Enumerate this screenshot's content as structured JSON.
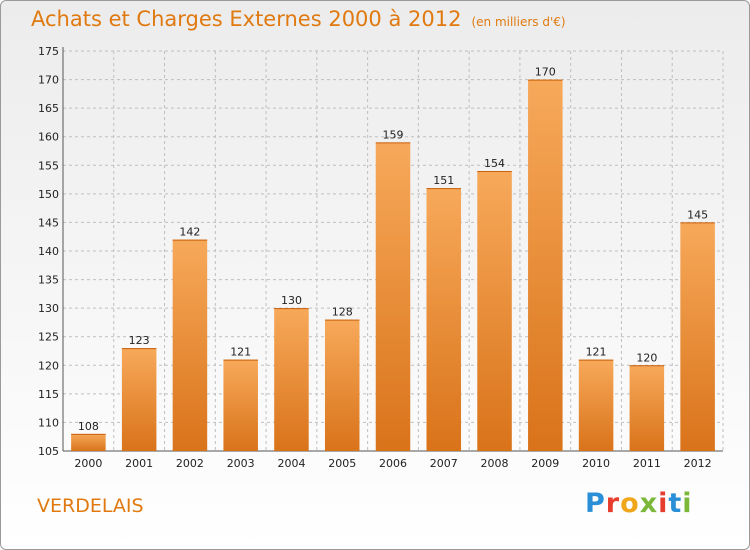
{
  "header": {
    "title": "Achats et Charges Externes 2000 à 2012",
    "subtitle": "(en milliers d'€)"
  },
  "footer": {
    "commune": "VERDELAIS",
    "logo_letters": [
      "P",
      "r",
      "o",
      "x",
      "i",
      "t",
      "i"
    ],
    "logo_colors": [
      "#2a8fd6",
      "#e63d2c",
      "#f0a61a",
      "#7bb83a",
      "#e63d2c",
      "#2a8fd6",
      "#7bb83a"
    ]
  },
  "chart_data": {
    "type": "bar",
    "categories": [
      "2000",
      "2001",
      "2002",
      "2003",
      "2004",
      "2005",
      "2006",
      "2007",
      "2008",
      "2009",
      "2010",
      "2011",
      "2012"
    ],
    "values": [
      108,
      123,
      142,
      121,
      130,
      128,
      159,
      151,
      154,
      170,
      121,
      120,
      145
    ],
    "ylim": [
      105,
      175
    ],
    "yticks": [
      105,
      110,
      115,
      120,
      125,
      130,
      135,
      140,
      145,
      150,
      155,
      160,
      165,
      170,
      175
    ],
    "grid": true,
    "colors": {
      "bar_top": "#f7a95a",
      "bar_bottom": "#d9731a",
      "grid": "#bfbfbf",
      "text": "#222222"
    }
  }
}
